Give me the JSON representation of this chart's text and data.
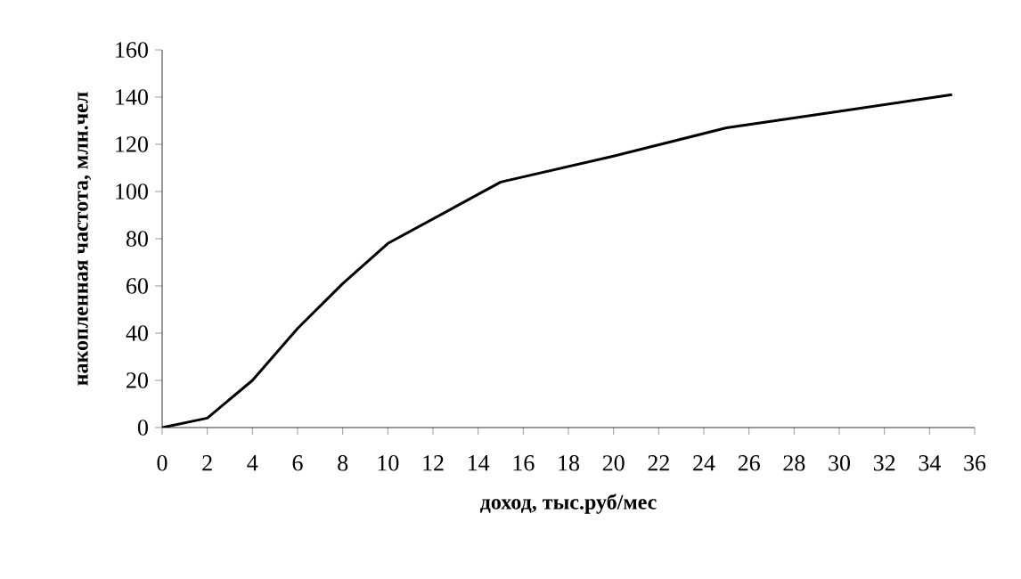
{
  "chart_data": {
    "type": "line",
    "xlabel": "доход, тыс.руб/мес",
    "ylabel": "накопленная частота, млн.чел",
    "x": [
      0,
      2,
      4,
      6,
      8,
      10,
      15,
      20,
      25,
      30,
      35
    ],
    "series": [
      {
        "color": "#000000",
        "values": [
          0,
          4,
          20,
          42,
          61,
          78,
          104,
          115,
          127,
          134,
          141
        ]
      }
    ],
    "xlim": [
      0,
      36
    ],
    "xticks": [
      0,
      2,
      4,
      6,
      8,
      10,
      12,
      14,
      16,
      18,
      20,
      22,
      24,
      26,
      28,
      30,
      32,
      34,
      36
    ],
    "ylim": [
      0,
      160
    ],
    "yticks": [
      0,
      20,
      40,
      60,
      80,
      100,
      120,
      140,
      160
    ],
    "marker": "none",
    "line_style": "solid"
  }
}
